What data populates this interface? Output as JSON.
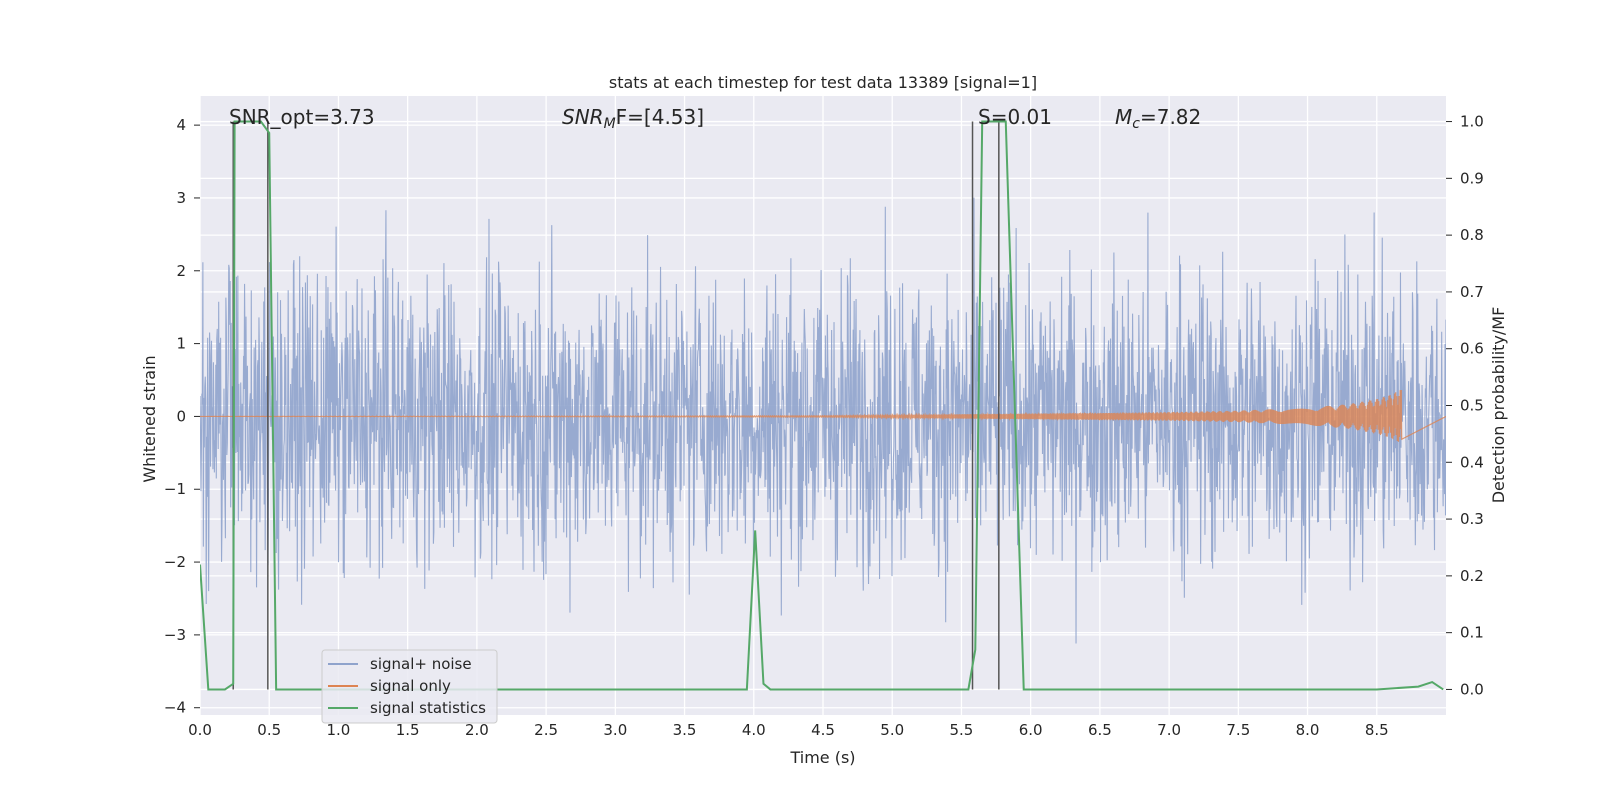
{
  "chart_data": {
    "type": "line",
    "title": "stats at each timestep for test data 13389 [signal=1]",
    "xlabel": "Time (s)",
    "ylabel_left": "Whitened strain",
    "ylabel_right": "Detection probability/MF",
    "xlim": [
      0.0,
      9.0
    ],
    "ylim_left": [
      -4.1,
      4.4
    ],
    "ylim_right": [
      -0.045,
      1.045
    ],
    "x_ticks": [
      "0.0",
      "0.5",
      "1.0",
      "1.5",
      "2.0",
      "2.5",
      "3.0",
      "3.5",
      "4.0",
      "4.5",
      "5.0",
      "5.5",
      "6.0",
      "6.5",
      "7.0",
      "7.5",
      "8.0",
      "8.5"
    ],
    "y_ticks_left": [
      "4",
      "3",
      "2",
      "1",
      "0",
      "−1",
      "−2",
      "−3",
      "−4"
    ],
    "y_ticks_right": [
      "1.0",
      "0.9",
      "0.8",
      "0.7",
      "0.6",
      "0.5",
      "0.4",
      "0.3",
      "0.2",
      "0.1",
      "0.0"
    ],
    "grid": true,
    "legend_position": "lower-left",
    "annotations": {
      "snr_opt": "SNR_opt=3.73",
      "snr_mf_base": "SNR",
      "snr_mf_sub": "M",
      "snr_mf_rest": "F=[4.53]",
      "s": "S=0.01",
      "mc_base": "M",
      "mc_sub": "c",
      "mc_rest": "=7.82"
    },
    "series": [
      {
        "name": "signal+ noise",
        "color": "#8fa3cc",
        "description_values": "whitened strain noise, approximately Gaussian, peaks between -3.8 and 4.0"
      },
      {
        "name": "signal only",
        "color": "#dd8452",
        "envelope": {
          "x": [
            0.0,
            4.5,
            5.0,
            5.5,
            6.0,
            6.5,
            7.0,
            7.5,
            8.0,
            8.3,
            8.5,
            8.6,
            8.68
          ],
          "amplitude": [
            0.0,
            0.01,
            0.02,
            0.03,
            0.04,
            0.05,
            0.06,
            0.08,
            0.12,
            0.17,
            0.24,
            0.3,
            0.38
          ]
        }
      },
      {
        "name": "signal statistics",
        "color": "#55a868",
        "x": [
          0.0,
          0.06,
          0.18,
          0.24,
          0.25,
          0.31,
          0.44,
          0.5,
          0.55,
          0.65,
          1.0,
          2.0,
          3.0,
          3.9,
          3.95,
          4.01,
          4.07,
          4.12,
          4.6,
          5.55,
          5.6,
          5.65,
          5.72,
          5.82,
          5.95,
          6.5,
          7.5,
          8.5,
          8.8,
          8.9,
          8.98
        ],
        "y": [
          0.22,
          0.0,
          0.0,
          0.01,
          1.0,
          1.0,
          1.0,
          0.98,
          0.0,
          0.0,
          0.0,
          0.0,
          0.0,
          0.0,
          0.0,
          0.28,
          0.01,
          0.0,
          0.0,
          0.0,
          0.07,
          1.0,
          1.0,
          1.0,
          0.0,
          0.0,
          0.0,
          0.0,
          0.005,
          0.013,
          0.0
        ]
      }
    ],
    "vertical_markers_x": [
      0.24,
      0.49,
      5.58,
      5.77
    ],
    "vertical_markers_top": 1.0
  },
  "legend": {
    "items": [
      "signal+ noise",
      "signal only",
      "signal statistics"
    ]
  }
}
